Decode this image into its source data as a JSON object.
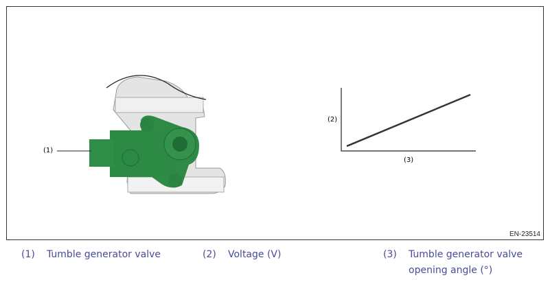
{
  "figure": {
    "callout_1": "(1)",
    "axis_y_label": "(2)",
    "axis_x_label": "(3)",
    "code": "EN-23514",
    "colors": {
      "valve_green": "#2e8b45",
      "caption_text": "#4a4a9c"
    }
  },
  "legend": [
    {
      "num": "(1)",
      "text": "Tumble generator valve"
    },
    {
      "num": "(2)",
      "text": "Voltage (V)"
    },
    {
      "num": "(3)",
      "text": "Tumble generator valve opening angle (°)"
    }
  ]
}
